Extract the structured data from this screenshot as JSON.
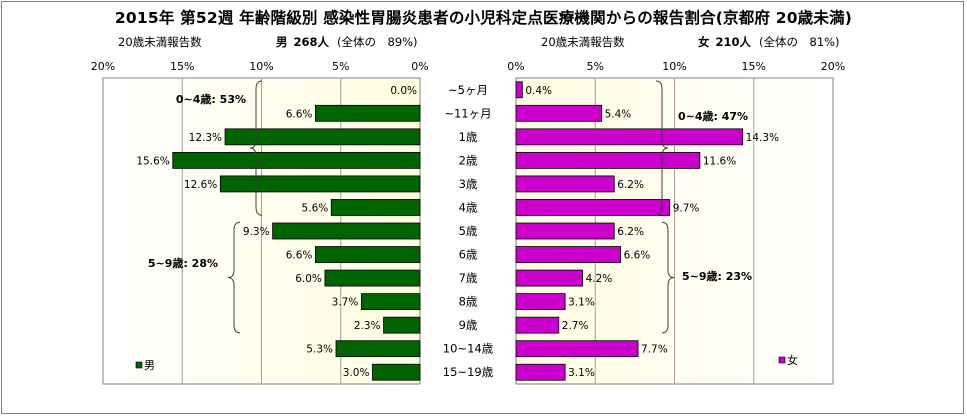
{
  "title": "2015年 第52週 年齢階級別 感染性胃腸炎患者の小児科定点医療機関からの報告割合(京都府 20歳未満)",
  "left_caption": {
    "label": "20歳未満報告数",
    "sex": "男",
    "count": "268人",
    "ratio": "(全体の　89%)"
  },
  "right_caption": {
    "label": "20歳未満報告数",
    "sex": "女",
    "count": "210人",
    "ratio": "(全体の　81%)"
  },
  "colors": {
    "male": "#006400",
    "female": "#cc00cc",
    "plot_bg": "#fffde0",
    "grid": "#a0a0a0"
  },
  "chart_data": [
    {
      "type": "bar",
      "orientation": "horizontal",
      "direction": "reversed",
      "title": "",
      "categories": [
        "~5ヶ月",
        "~11ヶ月",
        "1歳",
        "2歳",
        "3歳",
        "4歳",
        "5歳",
        "6歳",
        "7歳",
        "8歳",
        "9歳",
        "10~14歳",
        "15~19歳"
      ],
      "series": [
        {
          "name": "男",
          "values": [
            0.0,
            6.6,
            12.3,
            15.6,
            12.6,
            5.6,
            9.3,
            6.6,
            6.0,
            3.7,
            2.3,
            5.3,
            3.0
          ],
          "labels": [
            "0.0%",
            "6.6%",
            "12.3%",
            "15.6%",
            "12.6%",
            "5.6%",
            "9.3%",
            "6.6%",
            "6.0%",
            "3.7%",
            "2.3%",
            "5.3%",
            "3.0%"
          ]
        }
      ],
      "xlim": [
        0,
        20
      ],
      "tick_labels": [
        "20%",
        "15%",
        "10%",
        "5%",
        "0%"
      ],
      "grid": true,
      "legend": "bottom-left",
      "annotations": [
        {
          "text": "0~4歳: 53%",
          "from": 0,
          "to": 5
        },
        {
          "text": "5~9歳: 28%",
          "from": 6,
          "to": 10
        }
      ]
    },
    {
      "type": "bar",
      "orientation": "horizontal",
      "title": "",
      "categories": [
        "~5ヶ月",
        "~11ヶ月",
        "1歳",
        "2歳",
        "3歳",
        "4歳",
        "5歳",
        "6歳",
        "7歳",
        "8歳",
        "9歳",
        "10~14歳",
        "15~19歳"
      ],
      "series": [
        {
          "name": "女",
          "values": [
            0.4,
            5.4,
            14.3,
            11.6,
            6.2,
            9.7,
            6.2,
            6.6,
            4.2,
            3.1,
            2.7,
            7.7,
            3.1
          ],
          "labels": [
            "0.4%",
            "5.4%",
            "14.3%",
            "11.6%",
            "6.2%",
            "9.7%",
            "6.2%",
            "6.6%",
            "4.2%",
            "3.1%",
            "2.7%",
            "7.7%",
            "3.1%"
          ]
        }
      ],
      "xlim": [
        0,
        20
      ],
      "tick_labels": [
        "0%",
        "5%",
        "10%",
        "15%",
        "20%"
      ],
      "grid": true,
      "legend": "bottom-right",
      "annotations": [
        {
          "text": "0~4歳: 47%",
          "from": 0,
          "to": 5
        },
        {
          "text": "5~9歳: 23%",
          "from": 6,
          "to": 10
        }
      ]
    }
  ]
}
